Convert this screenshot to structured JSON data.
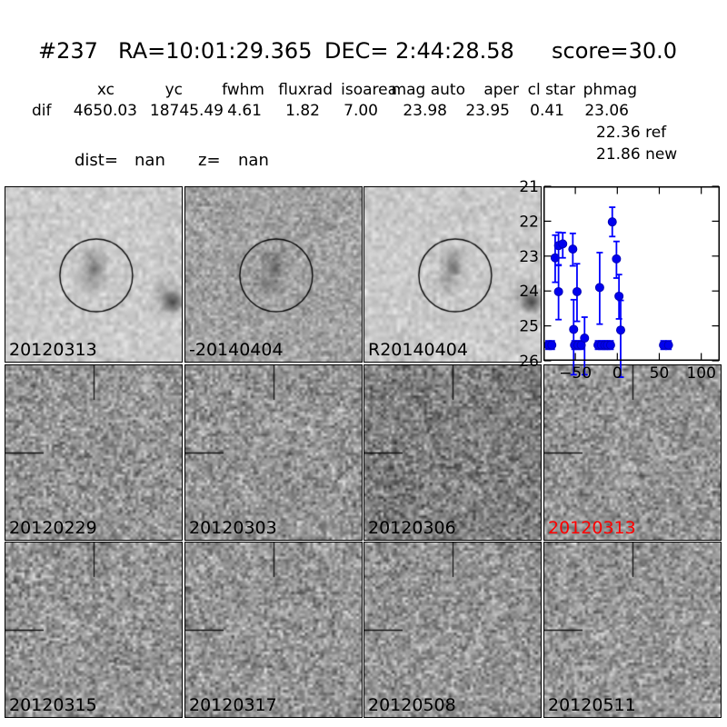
{
  "header": {
    "candidate_id": "#237",
    "ra": "RA=10:01:29.365",
    "dec": "DEC= 2:44:28.58",
    "score": "score=30.0"
  },
  "photometry_table": {
    "row_label": "dif",
    "headers": [
      "xc",
      "yc",
      "fwhm",
      "fluxrad",
      "isoarea",
      "mag auto",
      "aper",
      "cl star",
      "phmag"
    ],
    "values": [
      "4650.03",
      "18745.49",
      "4.61",
      "1.82",
      "7.00",
      "23.98",
      "23.95",
      "0.41",
      "23.06"
    ],
    "ref_mag": {
      "value": "22.36",
      "label": "ref"
    },
    "new_mag": {
      "value": "21.86",
      "label": "new"
    },
    "dist_label": "dist=",
    "dist_value": "nan",
    "z_label": "z=",
    "z_value": "nan"
  },
  "colors": {
    "marker_blue": "#0000ee",
    "errorbar_blue": "#0000ff",
    "highlight_red": "#ff0000",
    "text_black": "#000000"
  },
  "cutouts": [
    {
      "label": "20120313",
      "label_color": "#000000",
      "shade": "light",
      "circle": true,
      "edge_blob": true,
      "crosshair": false,
      "seed": 3
    },
    {
      "label": "-20140404",
      "label_color": "#000000",
      "shade": "mid",
      "circle": true,
      "edge_blob": false,
      "crosshair": false,
      "seed": 17
    },
    {
      "label": "R20140404",
      "label_color": "#000000",
      "shade": "light",
      "circle": true,
      "edge_blob": true,
      "crosshair": false,
      "seed": 29
    },
    {
      "label": "20120229",
      "label_color": "#000000",
      "shade": "noisy",
      "circle": false,
      "edge_blob": false,
      "crosshair": true,
      "seed": 101
    },
    {
      "label": "20120303",
      "label_color": "#000000",
      "shade": "noisy",
      "circle": false,
      "edge_blob": false,
      "crosshair": true,
      "seed": 102
    },
    {
      "label": "20120306",
      "label_color": "#000000",
      "shade": "dark",
      "circle": false,
      "edge_blob": false,
      "crosshair": true,
      "seed": 103
    },
    {
      "label": "20120313",
      "label_color": "#ff0000",
      "shade": "noisy",
      "circle": false,
      "edge_blob": false,
      "crosshair": true,
      "seed": 104
    },
    {
      "label": "20120315",
      "label_color": "#000000",
      "shade": "noisy",
      "circle": false,
      "edge_blob": false,
      "crosshair": true,
      "seed": 105
    },
    {
      "label": "20120317",
      "label_color": "#000000",
      "shade": "noisy",
      "circle": false,
      "edge_blob": false,
      "crosshair": true,
      "seed": 106
    },
    {
      "label": "20120508",
      "label_color": "#000000",
      "shade": "noisy",
      "circle": false,
      "edge_blob": false,
      "crosshair": true,
      "seed": 107
    },
    {
      "label": "20120511",
      "label_color": "#000000",
      "shade": "noisy",
      "circle": false,
      "edge_blob": false,
      "crosshair": true,
      "seed": 108
    }
  ],
  "chart_data": {
    "type": "scatter",
    "title": "",
    "xlabel": "",
    "ylabel": "",
    "xlim": [
      -88,
      122
    ],
    "ylim": [
      26,
      21
    ],
    "y_inverted": true,
    "xticks": [
      -50,
      0,
      50,
      100
    ],
    "yticks": [
      21,
      22,
      23,
      24,
      25,
      26
    ],
    "grid": false,
    "legend": null,
    "marker_color": "#0000ee",
    "errorbar_color": "#0000ff",
    "points_format": "[x_days, mag, err_up, err_down]",
    "points": [
      [
        -82,
        25.55,
        0.12,
        0.12
      ],
      [
        -78,
        25.55,
        0.12,
        0.12
      ],
      [
        -74,
        23.05,
        0.65,
        0.7
      ],
      [
        -70,
        22.7,
        0.38,
        0.55
      ],
      [
        -70,
        24.02,
        0.75,
        0.8
      ],
      [
        -65,
        22.65,
        0.32,
        0.4
      ],
      [
        -53,
        22.8,
        0.45,
        0.48
      ],
      [
        -52,
        25.1,
        0.85,
        1.3
      ],
      [
        -51,
        25.55,
        0.12,
        0.12
      ],
      [
        -48,
        24.02,
        0.8,
        0.85
      ],
      [
        -47,
        25.55,
        0.12,
        0.12
      ],
      [
        -43,
        25.55,
        0.12,
        0.12
      ],
      [
        -39,
        25.35,
        0.6,
        1.05
      ],
      [
        -23,
        25.55,
        0.12,
        0.12
      ],
      [
        -21,
        23.9,
        1.0,
        1.05
      ],
      [
        -19,
        25.55,
        0.12,
        0.12
      ],
      [
        -15,
        25.55,
        0.12,
        0.12
      ],
      [
        -12,
        25.55,
        0.12,
        0.12
      ],
      [
        -8,
        25.55,
        0.12,
        0.12
      ],
      [
        -6,
        22.02,
        0.42,
        0.42
      ],
      [
        -1,
        23.08,
        0.5,
        0.55
      ],
      [
        2,
        24.15,
        0.62,
        0.65
      ],
      [
        4,
        25.12,
        0.85,
        1.35
      ],
      [
        55,
        25.55,
        0.12,
        0.12
      ],
      [
        61,
        25.55,
        0.12,
        0.12
      ]
    ]
  }
}
